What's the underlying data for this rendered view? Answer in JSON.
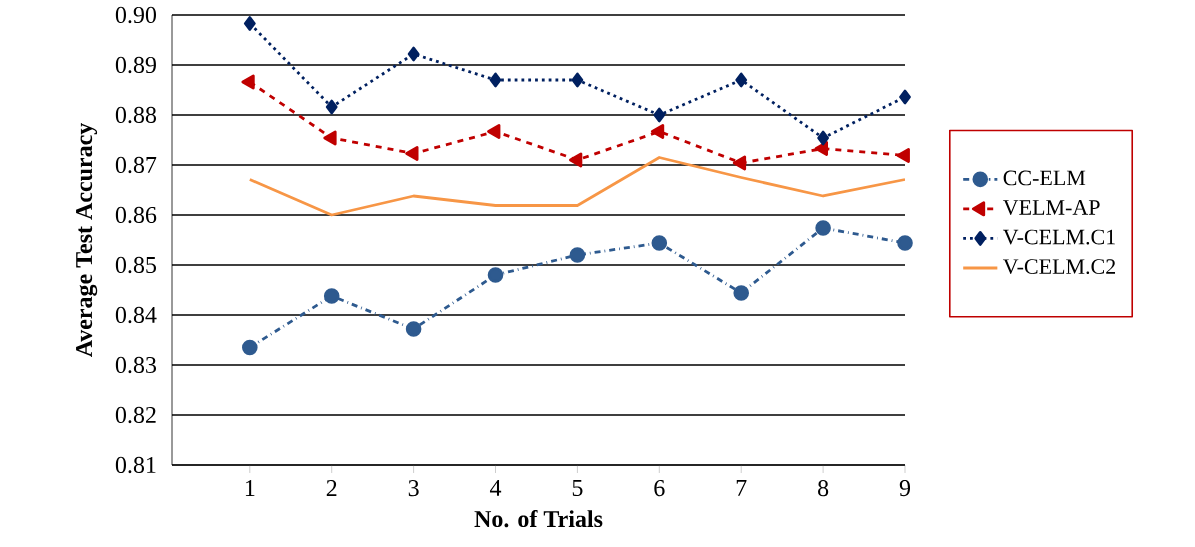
{
  "chart_data": {
    "type": "line",
    "xlabel": "No. of Trials",
    "ylabel": "Average Test Accuracy",
    "categories": [
      "1",
      "2",
      "3",
      "4",
      "5",
      "6",
      "7",
      "8",
      "9"
    ],
    "series": [
      {
        "name": "CC-ELM",
        "color": "#2e5a8f",
        "marker": "circle",
        "line_style": "dashdot",
        "values": [
          0.8335,
          0.8438,
          0.8372,
          0.848,
          0.852,
          0.8544,
          0.8444,
          0.8574,
          0.8544
        ]
      },
      {
        "name": "VELM-AP",
        "color": "#c00000",
        "marker": "triangle",
        "line_style": "dashed",
        "values": [
          0.8866,
          0.8754,
          0.8723,
          0.8767,
          0.871,
          0.8767,
          0.8704,
          0.8733,
          0.8719
        ]
      },
      {
        "name": "V-CELM.C1",
        "color": "#002060",
        "marker": "diamond",
        "line_style": "dotted",
        "values": [
          0.8983,
          0.8816,
          0.8922,
          0.887,
          0.887,
          0.88,
          0.887,
          0.8754,
          0.8836
        ]
      },
      {
        "name": "V-CELM.C2",
        "color": "#f79646",
        "marker": "none",
        "line_style": "solid",
        "values": [
          0.8671,
          0.86,
          0.8638,
          0.8619,
          0.8619,
          0.8715,
          0.8675,
          0.8638,
          0.8671
        ]
      }
    ],
    "ylim": [
      0.81,
      0.9
    ],
    "yticks": [
      0.81,
      0.82,
      0.83,
      0.84,
      0.85,
      0.86,
      0.87,
      0.88,
      0.89,
      {
        "value": 0.9,
        "label": "0.90"
      }
    ],
    "grid": "y",
    "legend": "right"
  }
}
